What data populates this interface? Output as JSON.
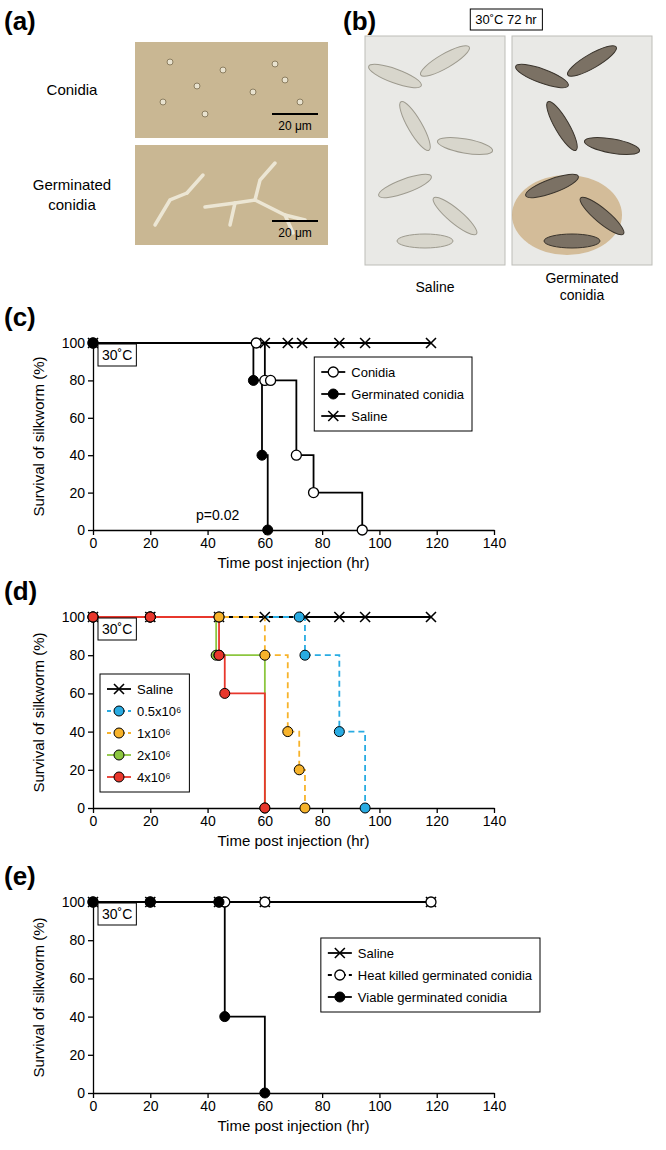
{
  "panel_a": {
    "label": "(a)",
    "images": [
      {
        "name": "Conidia",
        "scale_bar": "20 μm"
      },
      {
        "name": "Germinated conidia",
        "scale_bar": "20 μm"
      }
    ]
  },
  "panel_b": {
    "label": "(b)",
    "condition": "30˚C 72 hr",
    "images": [
      "Saline",
      "Germinated conidia"
    ]
  },
  "chart_data": [
    {
      "type": "line",
      "panel_label": "(c)",
      "condition": "30˚C",
      "annotations": [
        "p=0.02"
      ],
      "x_label": "Time post injection (hr)",
      "y_label": "Survival of silkworm (%)",
      "xlim": [
        0,
        140
      ],
      "ylim": [
        0,
        100
      ],
      "xticks": [
        0,
        20,
        40,
        60,
        80,
        100,
        120,
        140
      ],
      "yticks": [
        0,
        20,
        40,
        60,
        80,
        100
      ],
      "legend": "top-right",
      "series": [
        {
          "name": "Conidia",
          "color": "#000000",
          "marker": "circle-open",
          "line_style": "solid",
          "x": [
            0,
            57,
            60,
            62,
            71,
            77,
            94
          ],
          "values": [
            100,
            100,
            80,
            80,
            40,
            20,
            0
          ]
        },
        {
          "name": "Germinated conidia",
          "color": "#000000",
          "marker": "circle",
          "line_style": "solid",
          "x": [
            0,
            56,
            59,
            61
          ],
          "values": [
            100,
            80,
            40,
            0
          ]
        },
        {
          "name": "Saline",
          "color": "#000000",
          "marker": "x",
          "line_style": "solid",
          "x": [
            0,
            60,
            68,
            73,
            86,
            95,
            118
          ],
          "values": [
            100,
            100,
            100,
            100,
            100,
            100,
            100
          ]
        }
      ]
    },
    {
      "type": "line",
      "panel_label": "(d)",
      "condition": "30˚C",
      "x_label": "Time post injection (hr)",
      "y_label": "Survival of silkworm (%)",
      "xlim": [
        0,
        140
      ],
      "ylim": [
        0,
        100
      ],
      "xticks": [
        0,
        20,
        40,
        60,
        80,
        100,
        120,
        140
      ],
      "yticks": [
        0,
        20,
        40,
        60,
        80,
        100
      ],
      "legend": "bottom-left",
      "series": [
        {
          "name": "Saline",
          "color": "#000000",
          "marker": "x",
          "line_style": "solid",
          "x": [
            0,
            20,
            44,
            60,
            74,
            86,
            95,
            118
          ],
          "values": [
            100,
            100,
            100,
            100,
            100,
            100,
            100,
            100
          ]
        },
        {
          "name": "0.5x10⁶",
          "color": "#29abe2",
          "marker": "circle",
          "line_style": "dashed",
          "x": [
            0,
            20,
            44,
            72,
            74,
            86,
            95
          ],
          "values": [
            100,
            100,
            100,
            100,
            80,
            40,
            0
          ]
        },
        {
          "name": "1x10⁶",
          "color": "#f7b32b",
          "marker": "circle",
          "line_style": "dashed",
          "x": [
            0,
            20,
            44,
            60,
            68,
            72,
            74
          ],
          "values": [
            100,
            100,
            100,
            80,
            40,
            20,
            0
          ]
        },
        {
          "name": "2x10⁶",
          "color": "#8cc63f",
          "marker": "circle",
          "line_style": "solid",
          "x": [
            0,
            20,
            43,
            44,
            60
          ],
          "values": [
            100,
            100,
            80,
            80,
            0
          ]
        },
        {
          "name": "4x10⁶",
          "color": "#e8372c",
          "marker": "circle",
          "line_style": "solid",
          "x": [
            0,
            20,
            44,
            46,
            60
          ],
          "values": [
            100,
            100,
            80,
            60,
            0
          ]
        }
      ]
    },
    {
      "type": "line",
      "panel_label": "(e)",
      "condition": "30˚C",
      "x_label": "Time post injection (hr)",
      "y_label": "Survival of silkworm (%)",
      "xlim": [
        0,
        140
      ],
      "ylim": [
        0,
        100
      ],
      "xticks": [
        0,
        20,
        40,
        60,
        80,
        100,
        120,
        140
      ],
      "yticks": [
        0,
        20,
        40,
        60,
        80,
        100
      ],
      "legend": "top-right",
      "series": [
        {
          "name": "Saline",
          "color": "#000000",
          "marker": "x",
          "line_style": "solid",
          "x": [
            0,
            20,
            44,
            60,
            118
          ],
          "values": [
            100,
            100,
            100,
            100,
            100
          ]
        },
        {
          "name": "Heat killed germinated conidia",
          "color": "#000000",
          "marker": "circle-open",
          "line_style": "dashed",
          "x": [
            0,
            20,
            44,
            46,
            60,
            118
          ],
          "values": [
            100,
            100,
            100,
            100,
            100,
            100
          ]
        },
        {
          "name": "Viable germinated conidia",
          "color": "#000000",
          "marker": "circle",
          "line_style": "solid",
          "x": [
            0,
            20,
            44,
            46,
            60
          ],
          "values": [
            100,
            100,
            100,
            40,
            0
          ]
        }
      ]
    }
  ]
}
